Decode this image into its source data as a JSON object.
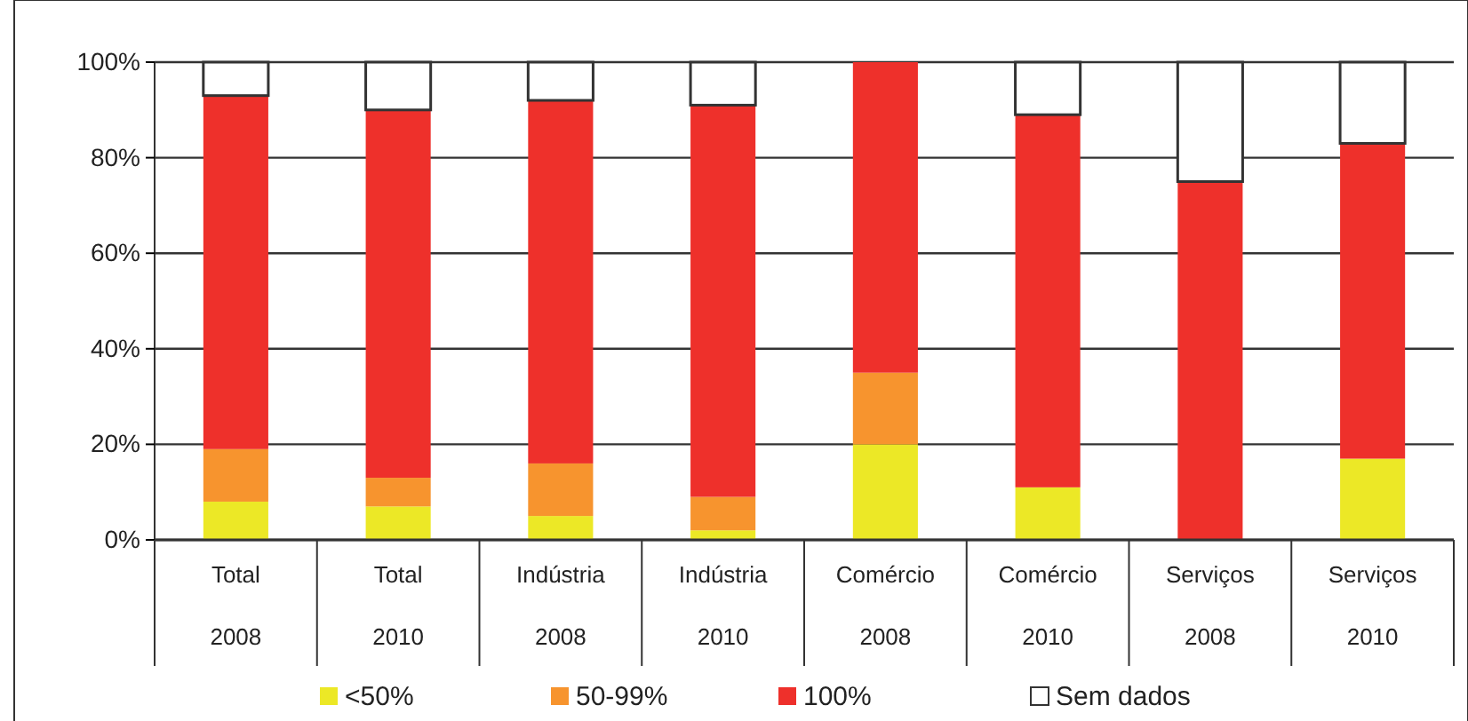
{
  "chart_data": {
    "type": "bar",
    "stacked": true,
    "categories": [
      "Total\n2008",
      "Total\n2010",
      "Indústria\n2008",
      "Indústria\n2010",
      "Comércio\n2008",
      "Comércio\n2010",
      "Serviços\n2008",
      "Serviços\n2010"
    ],
    "series": [
      {
        "name": "<50%",
        "color": "#ece826",
        "values": [
          8,
          7,
          5,
          2,
          20,
          11,
          0,
          17
        ]
      },
      {
        "name": "50-99%",
        "color": "#f7942e",
        "values": [
          11,
          6,
          11,
          7,
          15,
          0,
          0,
          0
        ]
      },
      {
        "name": "100%",
        "color": "#ee302b",
        "values": [
          74,
          77,
          76,
          82,
          65,
          78,
          75,
          66
        ]
      },
      {
        "name": "Sem dados",
        "color": "#ffffff",
        "values": [
          7,
          10,
          8,
          9,
          0,
          11,
          25,
          17
        ]
      }
    ],
    "ylim": [
      0,
      100
    ],
    "yticks": [
      {
        "value": 0,
        "label": "0%"
      },
      {
        "value": 20,
        "label": "20%"
      },
      {
        "value": 40,
        "label": "40%"
      },
      {
        "value": 60,
        "label": "60%"
      },
      {
        "value": 80,
        "label": "80%"
      },
      {
        "value": 100,
        "label": "100%"
      }
    ],
    "grid": "y",
    "legend": "bottom"
  }
}
